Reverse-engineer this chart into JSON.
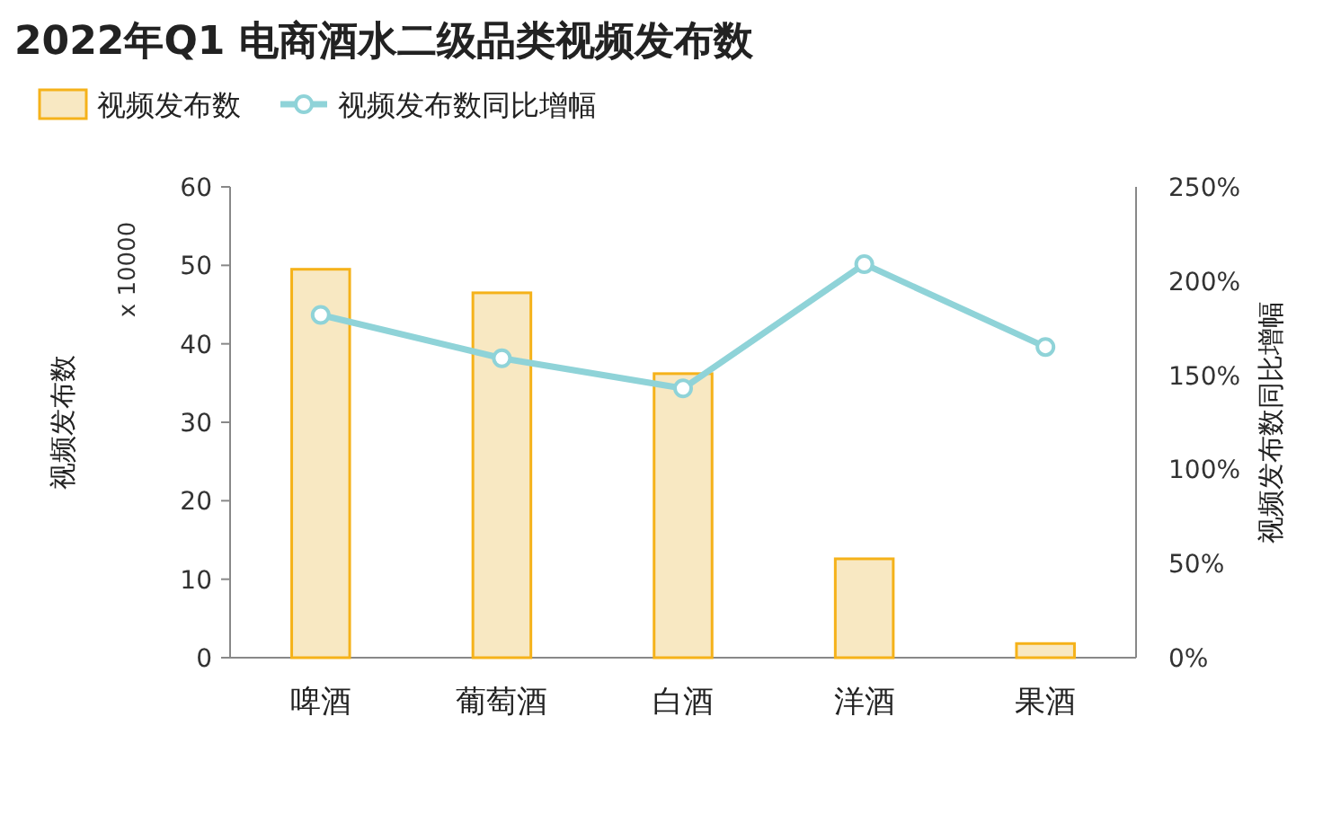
{
  "chart_data": {
    "type": "bar",
    "title": "2022年Q1 电商酒水二级品类视频发布数",
    "categories": [
      "啤酒",
      "葡萄酒",
      "白酒",
      "洋酒",
      "果酒"
    ],
    "series": [
      {
        "name": "视频发布数",
        "color": "#f8e8c2",
        "values": [
          49.5,
          46.5,
          36.2,
          12.6,
          1.8
        ]
      },
      {
        "name": "视频发布数同比增幅",
        "type": "line",
        "axis": "y2",
        "color": "#8fd3d8",
        "values": [
          182,
          159,
          143,
          209,
          165
        ]
      }
    ],
    "ylabel": "视频发布数",
    "y2label": "视频发布数同比增幅",
    "annotations": [
      "x 10000"
    ],
    "ylim": [
      0,
      60
    ],
    "yticks": [
      0,
      10,
      20,
      30,
      40,
      50,
      60
    ],
    "y2lim": [
      0,
      250
    ],
    "y2ticks": [
      {
        "value": 0,
        "label": "0%"
      },
      {
        "value": 50,
        "label": "50%"
      },
      {
        "value": 100,
        "label": "100%"
      },
      {
        "value": 150,
        "label": "150%"
      },
      {
        "value": 200,
        "label": "200%"
      },
      {
        "value": 250,
        "label": "250%"
      }
    ],
    "legend": "top left",
    "marker": "circle",
    "grid": false
  }
}
